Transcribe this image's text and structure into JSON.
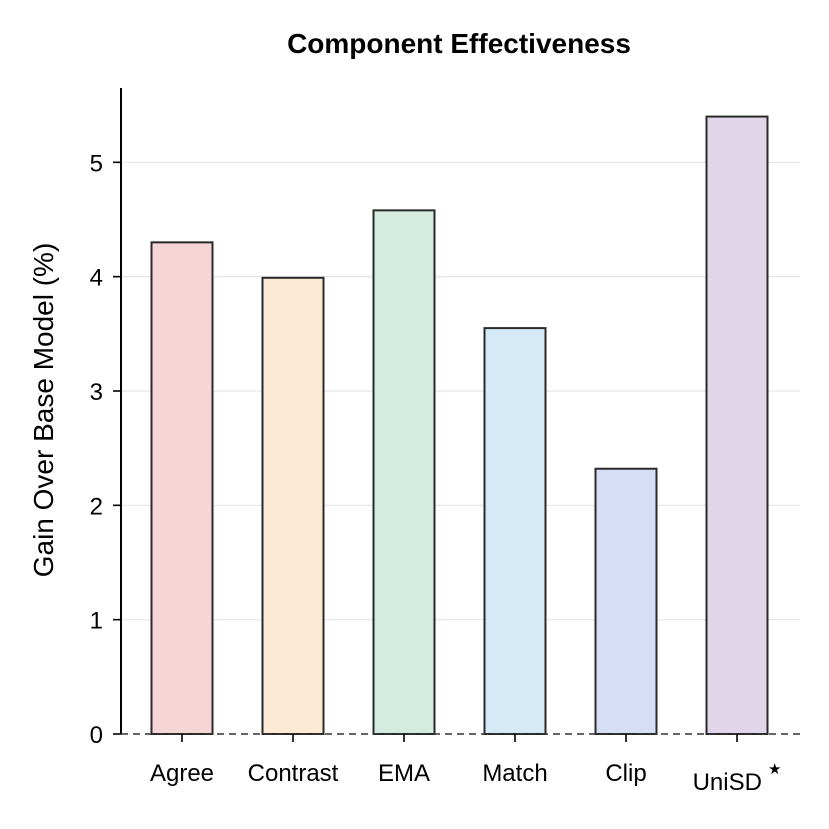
{
  "chart_data": {
    "type": "bar",
    "title": "Component Effectiveness",
    "xlabel": "",
    "ylabel": "Gain Over Base Model (%)",
    "categories": [
      "Agree",
      "Contrast",
      "EMA",
      "Match",
      "Clip",
      "UniSD"
    ],
    "category_superscripts": [
      "",
      "",
      "",
      "",
      "",
      "★"
    ],
    "values": [
      4.3,
      3.99,
      4.58,
      3.55,
      2.32,
      5.4
    ],
    "bar_colors": [
      "#f5d5d5",
      "#fde9d4",
      "#d3ecdf",
      "#d4eaf7",
      "#d6def6",
      "#e1d5e9"
    ],
    "ylim": [
      0,
      5.65
    ],
    "yticks": [
      0,
      1,
      2,
      3,
      4,
      5
    ],
    "grid": true,
    "baseline_dashed_at": 0
  }
}
